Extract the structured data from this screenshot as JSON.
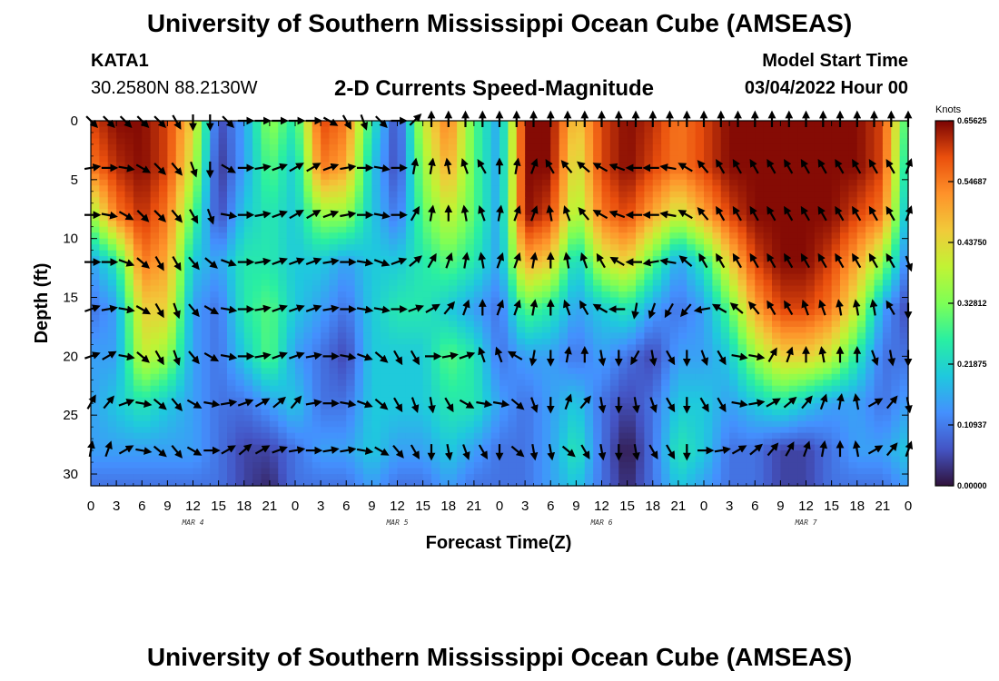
{
  "header": {
    "title": "University of Southern Mississippi Ocean Cube (AMSEAS)",
    "station": "KATA1",
    "coords": "30.2580N  88.2130W",
    "subtitle": "2-D Currents Speed-Magnitude",
    "model_label": "Model Start Time",
    "model_value": "03/04/2022 Hour 00"
  },
  "footer": {
    "title": "University of Southern Mississippi Ocean Cube (AMSEAS)"
  },
  "chart_data": {
    "type": "heatmap",
    "title": "2-D Currents Speed-Magnitude",
    "xlabel": "Forecast Time(Z)",
    "ylabel": "Depth (ft)",
    "x_tick_labels": [
      "0",
      "3",
      "6",
      "9",
      "12",
      "15",
      "18",
      "21",
      "0",
      "3",
      "6",
      "9",
      "12",
      "15",
      "18",
      "21",
      "0",
      "3",
      "6",
      "9",
      "12",
      "15",
      "18",
      "21",
      "0",
      "3",
      "6",
      "9",
      "12",
      "15",
      "18",
      "21",
      "0"
    ],
    "day_labels": [
      "MAR 4",
      "MAR 5",
      "MAR 6",
      "MAR 7"
    ],
    "y_ticks": [
      0,
      5,
      10,
      15,
      20,
      25,
      30
    ],
    "ylim": [
      0,
      31
    ],
    "xlim_hours": [
      0,
      96
    ],
    "colorbar": {
      "unit": "Knots",
      "ticks": [
        "0.65625",
        "0.54687",
        "0.43750",
        "0.32812",
        "0.21875",
        "0.10937",
        "0.00000"
      ],
      "min": 0.0,
      "max": 0.65625
    },
    "depths_ft": [
      0,
      4,
      8,
      12,
      16,
      20,
      24,
      28,
      31
    ],
    "times_h": [
      0,
      3,
      6,
      9,
      12,
      15,
      18,
      21,
      24,
      27,
      30,
      33,
      36,
      39,
      42,
      45,
      48,
      51,
      54,
      57,
      60,
      63,
      66,
      69,
      72,
      75,
      78,
      81,
      84,
      87,
      90,
      93,
      96
    ],
    "speed_knots": [
      [
        0.6,
        0.65,
        0.65,
        0.6,
        0.45,
        0.05,
        0.15,
        0.35,
        0.25,
        0.6,
        0.55,
        0.25,
        0.05,
        0.4,
        0.55,
        0.3,
        0.15,
        0.65,
        0.65,
        0.45,
        0.6,
        0.65,
        0.62,
        0.55,
        0.6,
        0.65,
        0.65,
        0.65,
        0.65,
        0.65,
        0.65,
        0.6,
        0.25
      ],
      [
        0.55,
        0.62,
        0.65,
        0.6,
        0.4,
        0.03,
        0.15,
        0.3,
        0.2,
        0.55,
        0.5,
        0.2,
        0.05,
        0.35,
        0.5,
        0.3,
        0.15,
        0.65,
        0.65,
        0.4,
        0.6,
        0.65,
        0.6,
        0.55,
        0.6,
        0.65,
        0.65,
        0.65,
        0.65,
        0.65,
        0.65,
        0.6,
        0.2
      ],
      [
        0.35,
        0.55,
        0.62,
        0.55,
        0.3,
        0.05,
        0.2,
        0.25,
        0.2,
        0.35,
        0.35,
        0.2,
        0.1,
        0.3,
        0.4,
        0.3,
        0.15,
        0.65,
        0.6,
        0.35,
        0.55,
        0.6,
        0.5,
        0.4,
        0.5,
        0.6,
        0.65,
        0.65,
        0.65,
        0.65,
        0.6,
        0.55,
        0.15
      ],
      [
        0.15,
        0.25,
        0.55,
        0.5,
        0.2,
        0.15,
        0.25,
        0.25,
        0.2,
        0.2,
        0.15,
        0.2,
        0.2,
        0.25,
        0.3,
        0.25,
        0.15,
        0.5,
        0.45,
        0.2,
        0.4,
        0.45,
        0.3,
        0.15,
        0.25,
        0.45,
        0.6,
        0.65,
        0.65,
        0.6,
        0.5,
        0.35,
        0.1
      ],
      [
        0.1,
        0.15,
        0.45,
        0.45,
        0.15,
        0.1,
        0.25,
        0.3,
        0.2,
        0.15,
        0.1,
        0.2,
        0.25,
        0.25,
        0.2,
        0.15,
        0.1,
        0.3,
        0.25,
        0.15,
        0.2,
        0.25,
        0.15,
        0.1,
        0.15,
        0.3,
        0.5,
        0.6,
        0.6,
        0.55,
        0.4,
        0.15,
        0.05
      ],
      [
        0.15,
        0.15,
        0.4,
        0.35,
        0.15,
        0.1,
        0.2,
        0.3,
        0.15,
        0.1,
        0.05,
        0.2,
        0.2,
        0.2,
        0.3,
        0.25,
        0.1,
        0.15,
        0.15,
        0.1,
        0.15,
        0.1,
        0.05,
        0.15,
        0.15,
        0.2,
        0.35,
        0.45,
        0.45,
        0.4,
        0.25,
        0.1,
        0.1
      ],
      [
        0.15,
        0.2,
        0.25,
        0.2,
        0.15,
        0.1,
        0.1,
        0.15,
        0.2,
        0.1,
        0.1,
        0.2,
        0.2,
        0.2,
        0.25,
        0.25,
        0.15,
        0.1,
        0.15,
        0.2,
        0.1,
        0.05,
        0.1,
        0.2,
        0.2,
        0.15,
        0.2,
        0.25,
        0.2,
        0.15,
        0.15,
        0.1,
        0.15
      ],
      [
        0.15,
        0.15,
        0.15,
        0.15,
        0.15,
        0.1,
        0.05,
        0.05,
        0.1,
        0.15,
        0.15,
        0.2,
        0.15,
        0.15,
        0.2,
        0.15,
        0.1,
        0.1,
        0.15,
        0.25,
        0.1,
        0.0,
        0.1,
        0.25,
        0.2,
        0.1,
        0.1,
        0.05,
        0.05,
        0.1,
        0.15,
        0.15,
        0.2
      ],
      [
        0.1,
        0.1,
        0.1,
        0.1,
        0.1,
        0.1,
        0.05,
        0.02,
        0.1,
        0.1,
        0.1,
        0.15,
        0.1,
        0.1,
        0.15,
        0.1,
        0.1,
        0.1,
        0.15,
        0.2,
        0.1,
        0.02,
        0.1,
        0.2,
        0.15,
        0.1,
        0.1,
        0.05,
        0.05,
        0.1,
        0.1,
        0.1,
        0.15
      ]
    ],
    "arrow_depths_ft": [
      0,
      4,
      8,
      12,
      16,
      20,
      24,
      28
    ],
    "arrow_times_h": [
      0,
      2,
      4,
      6,
      8,
      10,
      12,
      14,
      16,
      18,
      20,
      22,
      24,
      26,
      28,
      30,
      32,
      34,
      36,
      38,
      40,
      42,
      44,
      46,
      48,
      50,
      52,
      54,
      56,
      58,
      60,
      62,
      64,
      66,
      68,
      70,
      72,
      74,
      76,
      78,
      80,
      82,
      84,
      86,
      88,
      90,
      92,
      94,
      96
    ],
    "arrow_directions_deg_north": [
      [
        135,
        135,
        135,
        135,
        135,
        150,
        180,
        180,
        135,
        90,
        90,
        90,
        90,
        90,
        120,
        150,
        160,
        135,
        90,
        45,
        0,
        0,
        0,
        0,
        0,
        0,
        0,
        0,
        0,
        0,
        0,
        0,
        0,
        0,
        0,
        0,
        0,
        0,
        0,
        0,
        0,
        0,
        0,
        0,
        0,
        0,
        0,
        0,
        0
      ],
      [
        80,
        90,
        100,
        120,
        135,
        140,
        160,
        180,
        120,
        90,
        80,
        70,
        60,
        60,
        70,
        80,
        90,
        100,
        90,
        10,
        10,
        350,
        340,
        330,
        0,
        10,
        20,
        330,
        320,
        310,
        300,
        290,
        270,
        270,
        280,
        300,
        320,
        330,
        330,
        330,
        330,
        330,
        330,
        330,
        330,
        330,
        330,
        330,
        20
      ],
      [
        90,
        100,
        120,
        135,
        135,
        140,
        150,
        160,
        100,
        90,
        80,
        70,
        60,
        60,
        70,
        80,
        90,
        100,
        90,
        30,
        10,
        0,
        350,
        340,
        10,
        20,
        20,
        350,
        340,
        320,
        300,
        290,
        270,
        270,
        280,
        300,
        320,
        330,
        330,
        330,
        330,
        330,
        330,
        330,
        330,
        330,
        330,
        330,
        20
      ],
      [
        90,
        90,
        110,
        130,
        150,
        150,
        140,
        130,
        110,
        90,
        80,
        70,
        70,
        70,
        80,
        90,
        100,
        110,
        70,
        50,
        30,
        20,
        10,
        350,
        20,
        20,
        10,
        0,
        350,
        340,
        330,
        300,
        270,
        260,
        280,
        310,
        330,
        330,
        330,
        330,
        330,
        330,
        330,
        330,
        330,
        330,
        330,
        330,
        160
      ],
      [
        70,
        80,
        100,
        120,
        150,
        160,
        140,
        120,
        100,
        90,
        80,
        70,
        70,
        70,
        80,
        90,
        100,
        100,
        90,
        70,
        60,
        40,
        20,
        0,
        20,
        20,
        10,
        0,
        340,
        330,
        300,
        270,
        190,
        200,
        210,
        220,
        260,
        300,
        310,
        320,
        330,
        330,
        340,
        340,
        350,
        350,
        350,
        330,
        180
      ],
      [
        70,
        60,
        100,
        130,
        150,
        160,
        140,
        120,
        100,
        90,
        80,
        70,
        70,
        80,
        90,
        100,
        110,
        130,
        150,
        150,
        90,
        80,
        70,
        340,
        340,
        300,
        190,
        180,
        10,
        0,
        170,
        180,
        210,
        170,
        150,
        180,
        160,
        150,
        100,
        100,
        30,
        20,
        0,
        350,
        0,
        0,
        160,
        170,
        180
      ],
      [
        30,
        40,
        70,
        100,
        130,
        140,
        120,
        100,
        80,
        70,
        60,
        50,
        40,
        80,
        90,
        100,
        110,
        130,
        150,
        160,
        170,
        150,
        120,
        100,
        100,
        130,
        160,
        180,
        20,
        40,
        170,
        180,
        170,
        160,
        150,
        180,
        150,
        150,
        100,
        80,
        60,
        50,
        40,
        20,
        10,
        350,
        60,
        40,
        170
      ],
      [
        10,
        20,
        60,
        100,
        130,
        140,
        120,
        90,
        60,
        50,
        60,
        70,
        80,
        90,
        80,
        80,
        100,
        120,
        140,
        150,
        180,
        170,
        160,
        150,
        180,
        130,
        170,
        170,
        130,
        150,
        170,
        180,
        170,
        150,
        150,
        180,
        90,
        80,
        60,
        50,
        40,
        30,
        20,
        10,
        0,
        350,
        60,
        40,
        20
      ]
    ]
  }
}
